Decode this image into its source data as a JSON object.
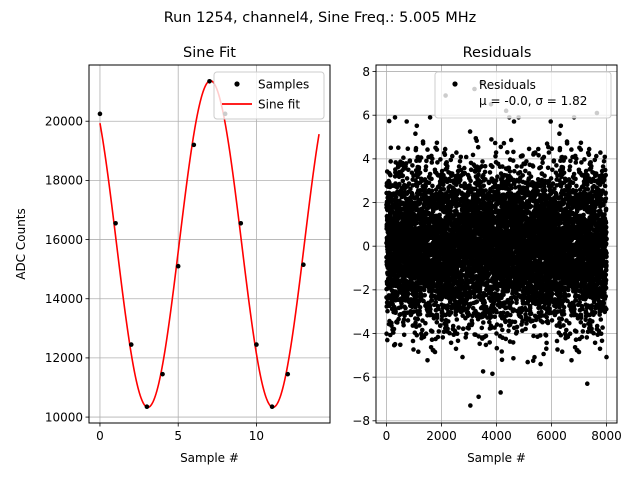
{
  "suptitle": "Run 1254, channel4, Sine Freq.: 5.005 MHz",
  "chart_data": [
    {
      "type": "line",
      "title": "Sine Fit",
      "xlabel": "Sample #",
      "ylabel": "ADC Counts",
      "xlim": [
        -0.7,
        14.7
      ],
      "ylim": [
        9800,
        21900
      ],
      "xticks": [
        0,
        5,
        10
      ],
      "yticks": [
        10000,
        12000,
        14000,
        16000,
        18000,
        20000
      ],
      "grid": true,
      "legend": {
        "location": "top-right",
        "entries": [
          "Samples",
          "Sine fit"
        ]
      },
      "series": [
        {
          "name": "Samples",
          "style": "points",
          "color": "#000000",
          "x": [
            0,
            1,
            2,
            3,
            4,
            5,
            6,
            7,
            8,
            9,
            10,
            11,
            12,
            13
          ],
          "y": [
            20250,
            16550,
            12450,
            10350,
            11450,
            15100,
            19200,
            21350,
            20250,
            16550,
            12450,
            10350,
            11450,
            15150
          ]
        },
        {
          "name": "Sine fit",
          "style": "line",
          "color": "#ff0000",
          "function": "offset + amplitude*cos(2*pi*(x - peak_x)/period)",
          "offset": 15850,
          "amplitude": 5520,
          "period": 8.0,
          "peak_x": 7.06,
          "x_range": [
            0,
            14
          ]
        }
      ]
    },
    {
      "type": "scatter",
      "title": "Residuals",
      "xlabel": "Sample #",
      "ylabel": "",
      "xlim": [
        -380,
        8380
      ],
      "ylim": [
        -8.1,
        8.3
      ],
      "xticks": [
        0,
        2000,
        4000,
        6000,
        8000
      ],
      "yticks": [
        -8,
        -6,
        -4,
        -2,
        0,
        2,
        4,
        6,
        8
      ],
      "grid": true,
      "legend": {
        "location": "top-right",
        "entries": [
          "Residuals",
          "μ = -0.0, σ = 1.82"
        ]
      },
      "series": [
        {
          "name": "Residuals",
          "color": "#000000",
          "n_points": 8000,
          "mean": -0.0,
          "std": 1.82,
          "x_range": [
            0,
            8000
          ],
          "notable_points": [
            [
              2150,
              6.9
            ],
            [
              3050,
              -7.3
            ],
            [
              3200,
              7.2
            ],
            [
              3450,
              7.5
            ],
            [
              3800,
              6.5
            ],
            [
              4150,
              -6.7
            ],
            [
              4350,
              6.2
            ],
            [
              7300,
              -6.3
            ],
            [
              7650,
              6.1
            ],
            [
              3350,
              -6.9
            ]
          ]
        }
      ]
    }
  ]
}
